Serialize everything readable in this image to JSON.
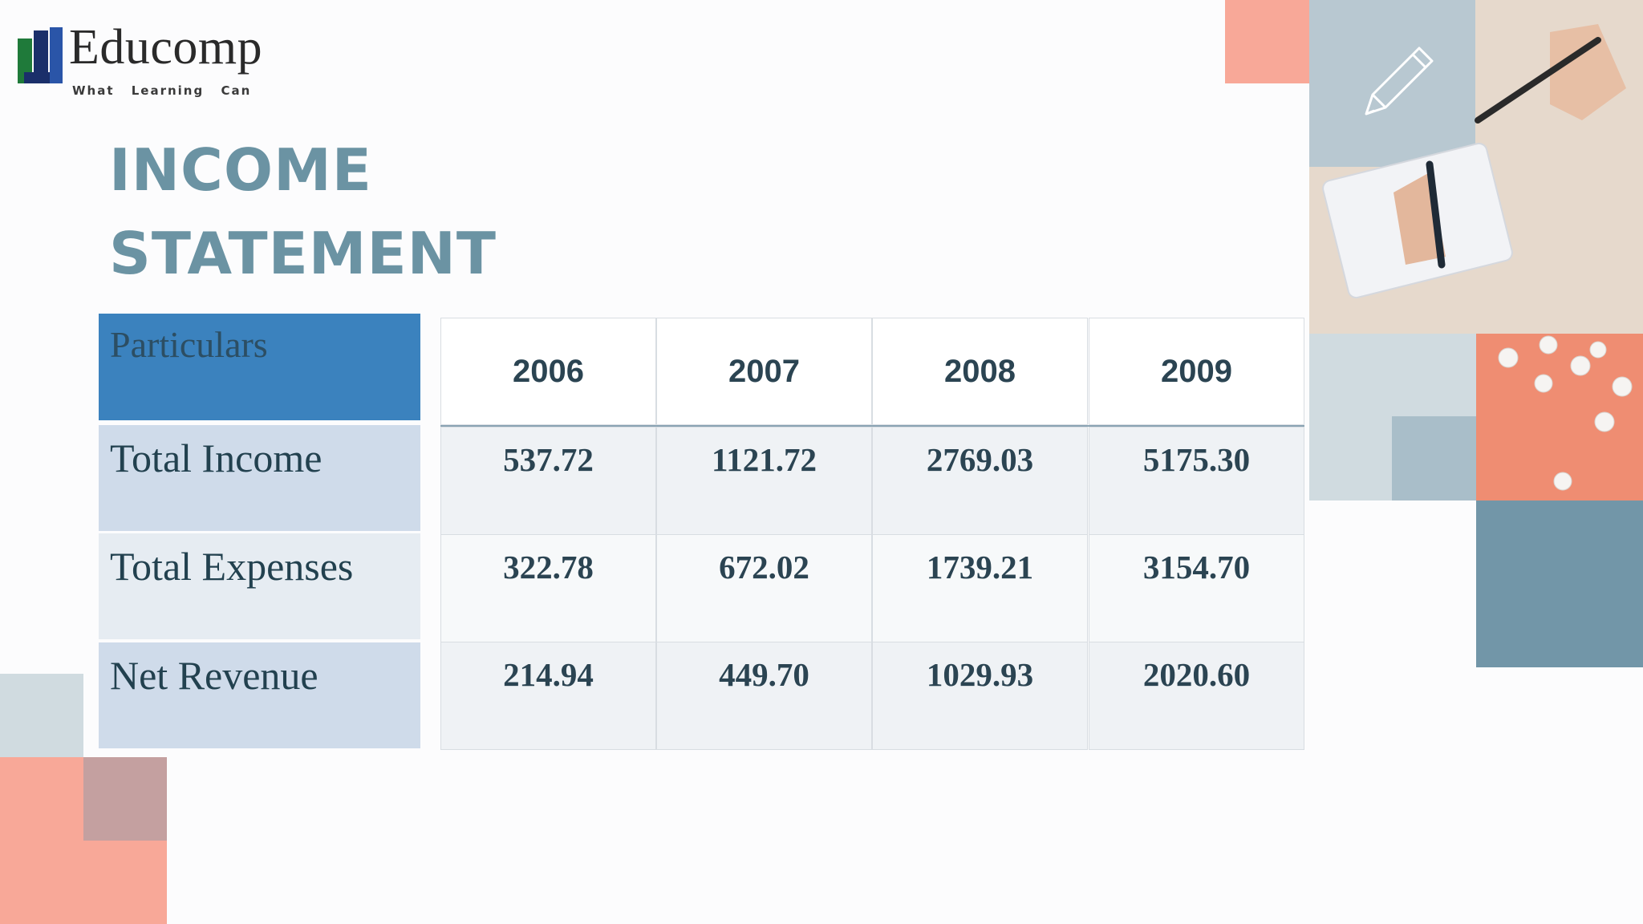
{
  "logo": {
    "name": "Educomp",
    "tagline": "What Learning Can",
    "icon": "educomp-logo-icon"
  },
  "title": {
    "line1": "INCOME",
    "line2": "STATEMENT"
  },
  "table": {
    "header_label": "Particulars",
    "years": [
      "2006",
      "2007",
      "2008",
      "2009"
    ],
    "rows": [
      {
        "label": "Total Income",
        "values": [
          "537.72",
          "1121.72",
          "2769.03",
          "5175.30"
        ]
      },
      {
        "label": "Total Expenses",
        "values": [
          "322.78",
          "672.02",
          "1739.21",
          "3154.70"
        ]
      },
      {
        "label": "Net Revenue",
        "values": [
          "214.94",
          "449.70",
          "1029.93",
          "2020.60"
        ]
      }
    ]
  },
  "decor": {
    "icons": [
      "pencil-icon",
      "writing-hands-photo",
      "paper-balls-photo"
    ],
    "colors": {
      "coral": "#f8a898",
      "slate": "#7296a8",
      "light_slate": "#d0dbe0",
      "mauve": "#c4a0a0",
      "header_blue": "#3b82be"
    }
  }
}
